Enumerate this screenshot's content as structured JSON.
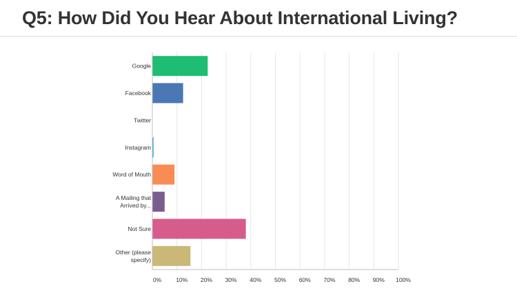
{
  "page": {
    "title": "Q5: How Did You Hear About International Living?"
  },
  "chart_data": {
    "type": "bar",
    "orientation": "horizontal",
    "title": "Q5: How Did You Hear About International Living?",
    "xlabel": "",
    "ylabel": "",
    "unit": "%",
    "xlim": [
      0,
      100
    ],
    "grid": true,
    "legend": "none",
    "categories": [
      [
        "Google"
      ],
      [
        "Facebook"
      ],
      [
        "Twitter"
      ],
      [
        "Instagram"
      ],
      [
        "Word of Mouth"
      ],
      [
        "A Mailing that",
        "Arrived by..."
      ],
      [
        "Not Sure"
      ],
      [
        "Other (please",
        "specify)"
      ]
    ],
    "values": [
      22.5,
      12.5,
      0,
      0.5,
      9,
      5,
      38,
      15.5
    ],
    "colors": [
      "#1ebd71",
      "#4b77b4",
      "#39a9dc",
      "#39a9dc",
      "#f98b55",
      "#7b5c90",
      "#d65c8e",
      "#c9b877"
    ],
    "ticks": [
      0,
      10,
      20,
      30,
      40,
      50,
      60,
      70,
      80,
      90,
      100
    ],
    "tick_labels": [
      "0%",
      "10%",
      "20%",
      "30%",
      "40%",
      "50%",
      "60%",
      "70%",
      "80%",
      "90%",
      "100%"
    ]
  }
}
